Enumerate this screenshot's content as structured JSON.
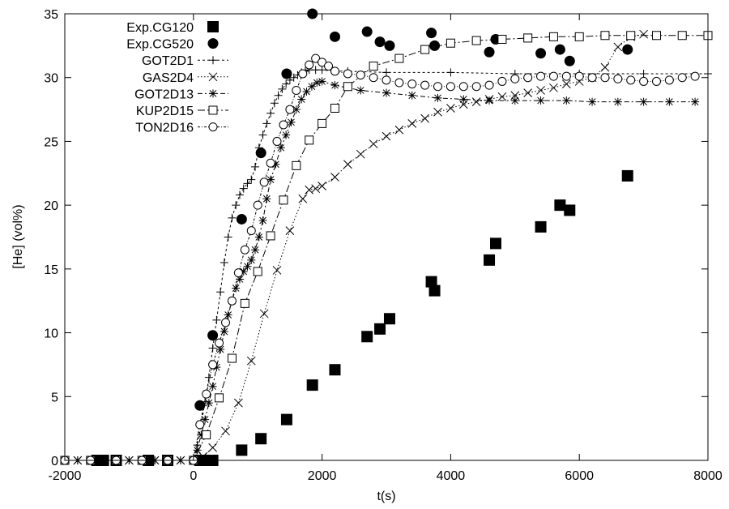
{
  "chart_data": {
    "type": "scatter",
    "title": "",
    "xlabel": "t(s)",
    "ylabel": "[He] (vol%)",
    "xlim": [
      -2000,
      8000
    ],
    "ylim": [
      0,
      35
    ],
    "xticks": [
      -2000,
      0,
      2000,
      4000,
      6000,
      8000
    ],
    "yticks": [
      0,
      5,
      10,
      15,
      20,
      25,
      30,
      35
    ],
    "grid": false,
    "legend_position": "top-left",
    "series": [
      {
        "name": "Exp.CG120",
        "kind": "marker",
        "marker": "filled-square",
        "x": [
          -1500,
          -1400,
          -1200,
          -700,
          -400,
          100,
          200,
          300,
          750,
          1050,
          1450,
          1850,
          2200,
          2700,
          2900,
          3050,
          3700,
          3750,
          4600,
          4700,
          5400,
          5700,
          5850,
          6750
        ],
        "y": [
          0,
          0,
          0,
          0,
          0,
          0,
          0,
          0,
          0.8,
          1.7,
          3.2,
          5.9,
          7.1,
          9.7,
          10.3,
          11.1,
          14.0,
          13.3,
          15.7,
          17.0,
          18.3,
          20.0,
          19.6,
          22.3
        ]
      },
      {
        "name": "Exp.CG520",
        "kind": "marker",
        "marker": "filled-circle",
        "x": [
          100,
          300,
          750,
          1050,
          1450,
          1850,
          2200,
          2900,
          3050,
          3700,
          3750,
          4600,
          4700,
          5400,
          5700,
          5850,
          6750,
          2700
        ],
        "y": [
          4.3,
          9.8,
          18.9,
          24.1,
          30.3,
          35.0,
          33.2,
          32.8,
          32.5,
          33.5,
          32.5,
          32.0,
          33.0,
          31.9,
          32.2,
          31.3,
          32.2,
          33.6
        ]
      },
      {
        "name": "GOT2D1",
        "kind": "line",
        "marker": "plus",
        "dash": "3,3",
        "x": [
          -2000,
          -1800,
          -1600,
          -1400,
          -1200,
          -1000,
          -800,
          -600,
          -400,
          -200,
          0,
          60,
          120,
          180,
          240,
          300,
          360,
          420,
          480,
          540,
          600,
          660,
          720,
          780,
          840,
          900,
          960,
          1020,
          1080,
          1140,
          1200,
          1260,
          1320,
          1380,
          1440,
          1500,
          1560,
          1620,
          1680,
          1740,
          1800,
          1900,
          2000,
          2200,
          2400,
          3000,
          4000,
          5000,
          6000,
          7000,
          8000
        ],
        "y": [
          0,
          0,
          0,
          0,
          0,
          0,
          0,
          0,
          0,
          0,
          0,
          1.2,
          2.8,
          4.6,
          6.5,
          8.8,
          11.0,
          13.2,
          15.5,
          17.5,
          19.0,
          20.0,
          20.8,
          21.3,
          21.7,
          22.0,
          23.0,
          24.5,
          25.5,
          26.4,
          27.2,
          28.0,
          28.6,
          29.1,
          29.5,
          29.8,
          30.0,
          30.2,
          30.4,
          30.5,
          30.6,
          30.6,
          30.6,
          30.5,
          30.5,
          30.4,
          30.4,
          30.3,
          30.3,
          30.3,
          30.3
        ]
      },
      {
        "name": "GAS2D4",
        "kind": "line",
        "marker": "cross",
        "dash": "1.5,2.5",
        "x": [
          -2000,
          -1800,
          -1600,
          -1400,
          -1200,
          -1000,
          -800,
          -600,
          -400,
          -200,
          0,
          150,
          300,
          500,
          700,
          900,
          1100,
          1300,
          1500,
          1700,
          1800,
          1900,
          2000,
          2200,
          2400,
          2600,
          2800,
          3000,
          3200,
          3400,
          3600,
          3800,
          4000,
          4200,
          4400,
          4600,
          4800,
          5000,
          5200,
          5400,
          5600,
          5800,
          6000,
          6200,
          6400,
          6600,
          6800,
          7000
        ],
        "y": [
          0,
          0,
          0,
          0,
          0,
          0,
          0,
          0,
          0,
          0,
          0,
          0.3,
          1.0,
          2.3,
          4.5,
          7.8,
          11.5,
          14.9,
          18.0,
          20.5,
          21.2,
          21.3,
          21.5,
          22.2,
          23.2,
          24.0,
          24.8,
          25.4,
          25.9,
          26.4,
          26.8,
          27.3,
          27.6,
          27.9,
          28.1,
          28.3,
          28.5,
          28.6,
          28.8,
          29.0,
          29.2,
          29.5,
          29.7,
          30.0,
          30.8,
          32.4,
          33.2,
          33.4
        ]
      },
      {
        "name": "GOT2D13",
        "kind": "line",
        "marker": "star",
        "dash": "6,3,2,3",
        "x": [
          -2000,
          -1800,
          -1600,
          -1400,
          -1200,
          -1000,
          -800,
          -600,
          -400,
          -200,
          0,
          60,
          120,
          180,
          240,
          300,
          360,
          420,
          480,
          540,
          600,
          660,
          720,
          780,
          840,
          900,
          960,
          1020,
          1080,
          1140,
          1200,
          1280,
          1360,
          1440,
          1520,
          1600,
          1680,
          1760,
          1840,
          1920,
          2000,
          2200,
          2600,
          3000,
          3400,
          3800,
          4200,
          4600,
          5000,
          5400,
          5800,
          6200,
          6600,
          7000,
          7400,
          7800
        ],
        "y": [
          0,
          0,
          0,
          0,
          0,
          0,
          0,
          0,
          0,
          0,
          0,
          0.8,
          2.0,
          3.2,
          4.5,
          5.8,
          7.3,
          8.7,
          10.1,
          11.4,
          12.5,
          13.5,
          14.2,
          14.8,
          15.2,
          15.7,
          16.5,
          17.5,
          18.8,
          20.5,
          22.0,
          23.2,
          24.5,
          25.5,
          26.5,
          27.5,
          28.3,
          28.9,
          29.3,
          29.6,
          29.7,
          29.4,
          29.0,
          28.8,
          28.6,
          28.4,
          28.3,
          28.2,
          28.2,
          28.2,
          28.2,
          28.1,
          28.1,
          28.1,
          28.1,
          28.1
        ]
      },
      {
        "name": "KUP2D15",
        "kind": "line",
        "marker": "open-square",
        "dash": "9,3,2,3",
        "x": [
          -2000,
          -1600,
          -1200,
          -800,
          -400,
          0,
          200,
          400,
          600,
          800,
          1000,
          1200,
          1400,
          1600,
          1800,
          2000,
          2200,
          2400,
          2800,
          3200,
          3600,
          4000,
          4400,
          4800,
          5200,
          5600,
          6000,
          6400,
          6800,
          7200,
          7600,
          8000
        ],
        "y": [
          0,
          0,
          0,
          0,
          0,
          0,
          2.0,
          4.9,
          8.0,
          12.3,
          14.8,
          17.6,
          20.4,
          23.1,
          25.1,
          26.4,
          27.6,
          29.3,
          30.9,
          31.5,
          32.2,
          32.7,
          32.9,
          33.0,
          33.1,
          33.2,
          33.2,
          33.3,
          33.3,
          33.3,
          33.3,
          33.3
        ]
      },
      {
        "name": "TON2D16",
        "kind": "line",
        "marker": "open-circle",
        "dash": "3,2,1,2",
        "x": [
          -2000,
          -1600,
          -1200,
          -800,
          -400,
          0,
          100,
          200,
          300,
          400,
          500,
          600,
          700,
          800,
          900,
          1000,
          1100,
          1200,
          1300,
          1400,
          1500,
          1600,
          1700,
          1800,
          1900,
          2000,
          2100,
          2200,
          2400,
          2600,
          2800,
          3000,
          3200,
          3400,
          3600,
          3800,
          4000,
          4200,
          4400,
          4600,
          4800,
          5000,
          5200,
          5400,
          5600,
          5800,
          6000,
          6200,
          6400,
          6600,
          6800,
          7000,
          7200,
          7400,
          7600,
          7800
        ],
        "y": [
          0,
          0,
          0,
          0,
          0,
          0,
          2.8,
          5.2,
          7.5,
          9.2,
          10.8,
          12.5,
          14.7,
          16.5,
          18.0,
          20.0,
          21.8,
          23.3,
          25.0,
          26.3,
          27.5,
          29.0,
          30.3,
          31.0,
          31.5,
          31.2,
          30.9,
          30.5,
          30.3,
          30.2,
          30.0,
          29.8,
          29.6,
          29.5,
          29.4,
          29.3,
          29.3,
          29.3,
          29.3,
          29.4,
          29.7,
          29.9,
          30.0,
          30.1,
          30.1,
          30.1,
          30.1,
          30.0,
          30.0,
          29.9,
          29.8,
          29.7,
          29.7,
          29.8,
          30.0,
          30.1
        ]
      }
    ]
  }
}
